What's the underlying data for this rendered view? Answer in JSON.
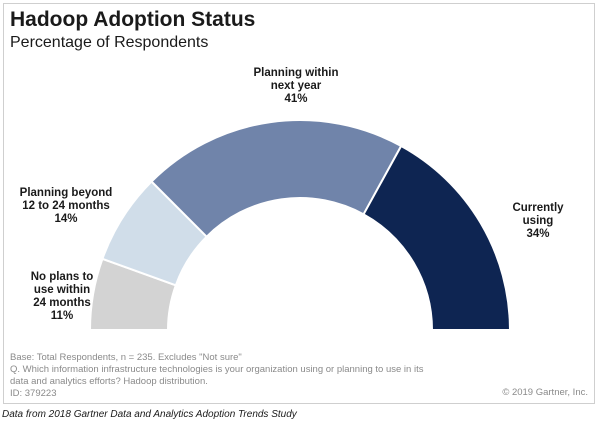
{
  "chart_data": {
    "type": "pie",
    "subtype": "half-donut",
    "title": "Hadoop Adoption Status",
    "subtitle": "Percentage of Respondents",
    "unit": "%",
    "slices": [
      {
        "label_lines": [
          "No plans to",
          "use within",
          "24 months"
        ],
        "value": 11,
        "value_label": "11%",
        "color": "#d3d3d3"
      },
      {
        "label_lines": [
          "Planning beyond",
          "12 to 24 months"
        ],
        "value": 14,
        "value_label": "14%",
        "color": "#d0dde9"
      },
      {
        "label_lines": [
          "Planning within",
          "next year"
        ],
        "value": 41,
        "value_label": "41%",
        "color": "#7084aa"
      },
      {
        "label_lines": [
          "Currently",
          "using"
        ],
        "value": 34,
        "value_label": "34%",
        "color": "#0e2552"
      }
    ]
  },
  "footnotes": [
    "Base: Total Respondents, n = 235. Excludes \"Not sure\"",
    "Q. Which information infrastructure technologies is your organization using or planning to use in its",
    "data and analytics efforts? Hadoop distribution.",
    "ID: 379223"
  ],
  "copyright": "© 2019 Gartner, Inc.",
  "caption": "Data from 2018 Gartner Data and Analytics Adoption Trends Study"
}
